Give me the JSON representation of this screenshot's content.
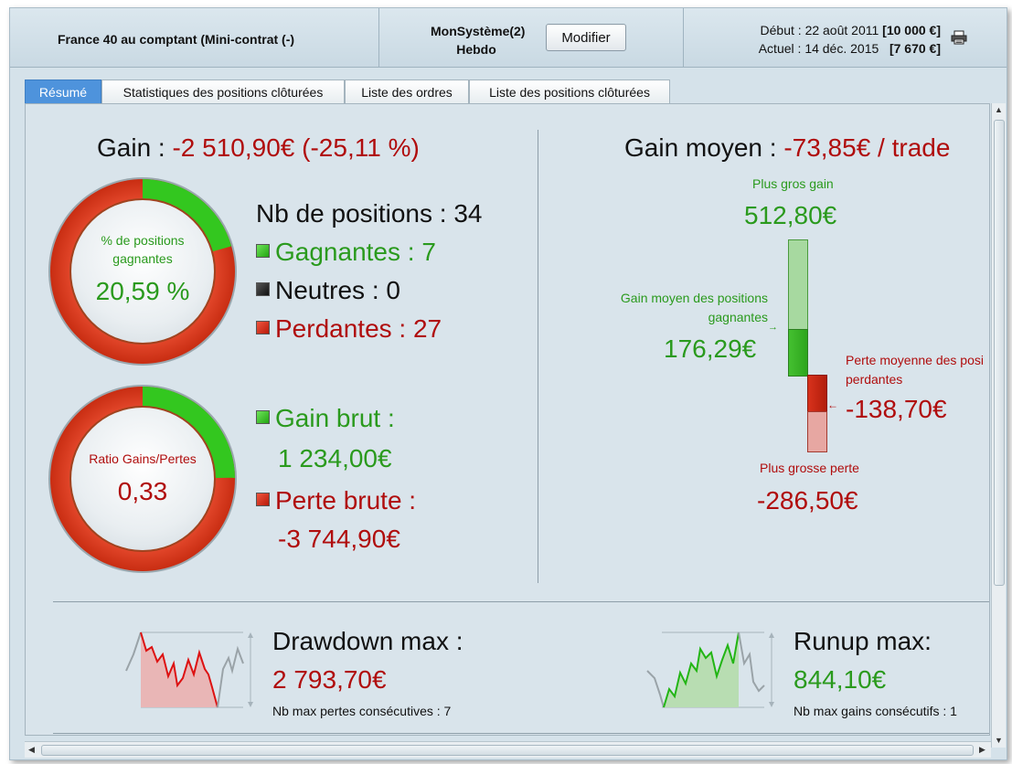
{
  "header": {
    "instrument": "France 40 au comptant (Mini-contrat  (-)",
    "system_name": "MonSystème(2)",
    "period": "Hebdo",
    "modify_label": "Modifier",
    "start_label": "Début :",
    "start_date": "22 août 2011",
    "start_value": "[10 000 €]",
    "current_label": "Actuel :",
    "current_date": "14 déc. 2015",
    "current_value": "[7 670 €]"
  },
  "tabs": [
    {
      "label": "Résumé",
      "active": true
    },
    {
      "label": "Statistiques des positions clôturées",
      "active": false
    },
    {
      "label": "Liste des ordres",
      "active": false
    },
    {
      "label": "Liste des positions clôturées",
      "active": false
    }
  ],
  "summary": {
    "gain_label": "Gain :",
    "gain_value": "-2 510,90€ (-25,11 %)",
    "positions_label": "Nb de positions : 34",
    "winning": "Gagnantes : 7",
    "neutral": "Neutres : 0",
    "losing": "Perdantes : 27",
    "win_donut_label": "% de positions gagnantes",
    "win_donut_value": "20,59 %",
    "win_fraction": 0.2059,
    "ratio_donut_label": "Ratio Gains/Pertes",
    "ratio_donut_value": "0,33",
    "ratio_fraction": 0.248,
    "gross_gain_label": "Gain brut :",
    "gross_gain_value": "1 234,00€",
    "gross_loss_label": "Perte brute :",
    "gross_loss_value": "-3 744,90€"
  },
  "average": {
    "label": "Gain moyen :",
    "value": "-73,85€ / trade",
    "biggest_gain_label": "Plus gros gain",
    "biggest_gain_value": "512,80€",
    "avg_win_label_1": "Gain moyen des positions",
    "avg_win_label_2": "gagnantes",
    "avg_win_value": "176,29€",
    "avg_loss_label_1": "Perte moyenne des posi",
    "avg_loss_label_2": "perdantes",
    "avg_loss_value": "-138,70€",
    "biggest_loss_label": "Plus grosse perte",
    "biggest_loss_value": "-286,50€"
  },
  "drawdown": {
    "label": "Drawdown max :",
    "value": "2 793,70€",
    "sub": "Nb max pertes consécutives : 7"
  },
  "runup": {
    "label": "Runup max:",
    "value": "844,10€",
    "sub": "Nb max gains consécutifs : 1"
  },
  "colors": {
    "gain_green": "#2a9a1d",
    "loss_red": "#b00d0d",
    "tab_active": "#4e93dc"
  }
}
